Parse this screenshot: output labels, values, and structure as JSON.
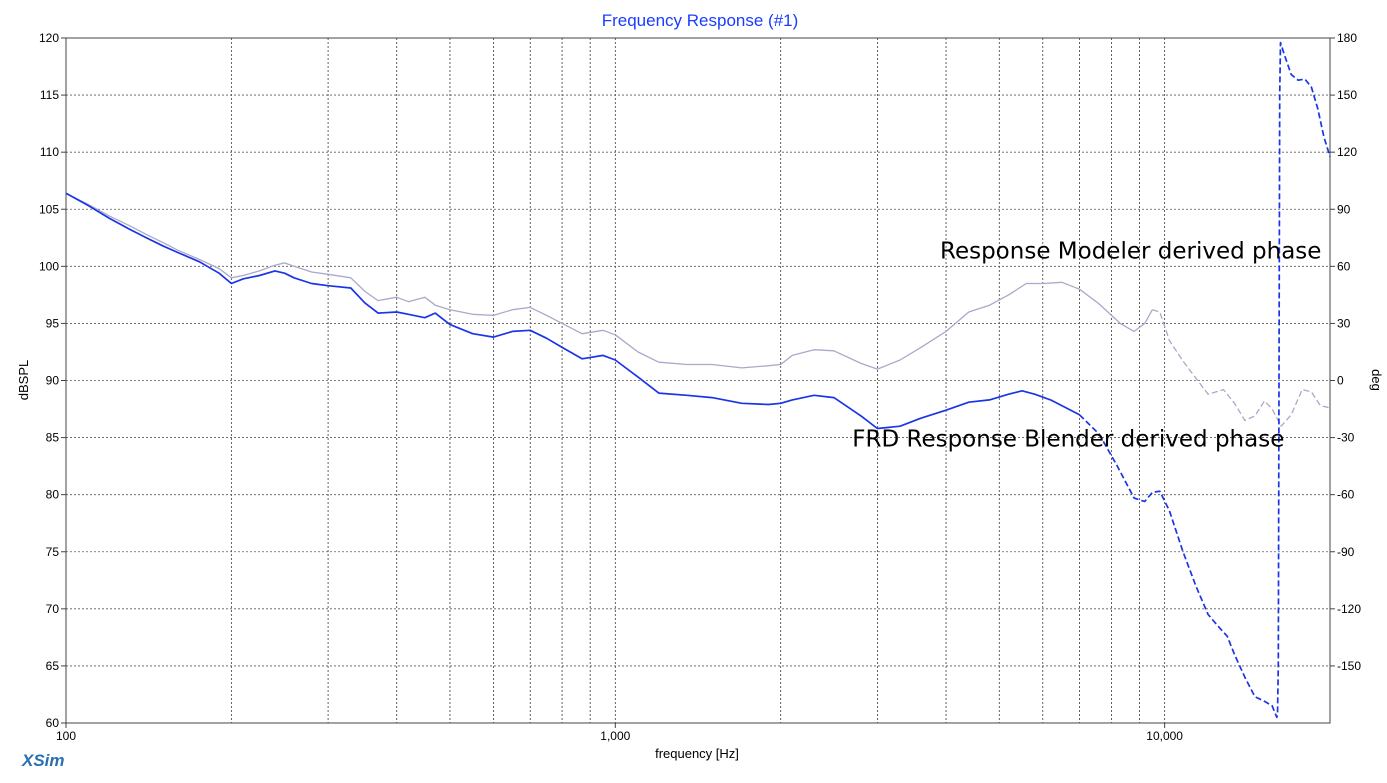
{
  "chart_data": {
    "type": "line",
    "title": "Frequency Response (#1)",
    "xlabel": "frequency [Hz]",
    "ylabel": "dBSPL",
    "y2label": "deg",
    "x_scale": "log",
    "xlim": [
      100,
      20000
    ],
    "ylim": [
      60,
      120
    ],
    "y2lim": [
      -180,
      180
    ],
    "grid": true,
    "x_tick_labels": [
      {
        "value": 100,
        "label": "100"
      },
      {
        "value": 1000,
        "label": "1,000"
      },
      {
        "value": 10000,
        "label": "10,000"
      }
    ],
    "y_ticks": [
      60,
      65,
      70,
      75,
      80,
      85,
      90,
      95,
      100,
      105,
      110,
      115,
      120
    ],
    "y2_ticks": [
      -150,
      -120,
      -90,
      -60,
      -30,
      0,
      30,
      60,
      90,
      120,
      150,
      180
    ],
    "annotations": [
      {
        "text": "Response Modeler derived phase",
        "x": 3900,
        "y": 100.7
      },
      {
        "text": "FRD Response Blender derived phase",
        "x": 2700,
        "y": 84.2
      }
    ],
    "series": [
      {
        "color": "#a9a9c9",
        "width": 1.3,
        "dashed_from": 9500,
        "points": [
          [
            100,
            106.4
          ],
          [
            110,
            105.4
          ],
          [
            120,
            104.4
          ],
          [
            130,
            103.6
          ],
          [
            140,
            102.8
          ],
          [
            150,
            102.1
          ],
          [
            160,
            101.4
          ],
          [
            175,
            100.6
          ],
          [
            190,
            99.8
          ],
          [
            200,
            99.0
          ],
          [
            210,
            99.2
          ],
          [
            225,
            99.6
          ],
          [
            240,
            100.1
          ],
          [
            250,
            100.3
          ],
          [
            260,
            100.0
          ],
          [
            280,
            99.5
          ],
          [
            300,
            99.3
          ],
          [
            330,
            99.0
          ],
          [
            350,
            97.8
          ],
          [
            370,
            97.0
          ],
          [
            400,
            97.3
          ],
          [
            420,
            96.9
          ],
          [
            450,
            97.3
          ],
          [
            470,
            96.6
          ],
          [
            500,
            96.2
          ],
          [
            550,
            95.8
          ],
          [
            600,
            95.7
          ],
          [
            650,
            96.2
          ],
          [
            700,
            96.4
          ],
          [
            750,
            95.7
          ],
          [
            800,
            95.0
          ],
          [
            870,
            94.1
          ],
          [
            950,
            94.4
          ],
          [
            1000,
            94.0
          ],
          [
            1100,
            92.5
          ],
          [
            1200,
            91.6
          ],
          [
            1350,
            91.4
          ],
          [
            1500,
            91.4
          ],
          [
            1700,
            91.1
          ],
          [
            1900,
            91.3
          ],
          [
            2000,
            91.4
          ],
          [
            2100,
            92.2
          ],
          [
            2300,
            92.7
          ],
          [
            2500,
            92.6
          ],
          [
            2800,
            91.5
          ],
          [
            3000,
            91.0
          ],
          [
            3300,
            91.8
          ],
          [
            3600,
            92.9
          ],
          [
            4000,
            94.3
          ],
          [
            4400,
            96.0
          ],
          [
            4800,
            96.6
          ],
          [
            5200,
            97.5
          ],
          [
            5600,
            98.5
          ],
          [
            6000,
            98.5
          ],
          [
            6500,
            98.6
          ],
          [
            7000,
            98.0
          ],
          [
            7600,
            96.7
          ],
          [
            8300,
            95.0
          ],
          [
            8800,
            94.3
          ],
          [
            9200,
            95.0
          ],
          [
            9500,
            96.2
          ],
          [
            9800,
            96.0
          ],
          [
            10200,
            93.5
          ],
          [
            10800,
            91.7
          ],
          [
            11400,
            90.2
          ],
          [
            12000,
            88.8
          ],
          [
            12800,
            89.2
          ],
          [
            13400,
            88.0
          ],
          [
            14000,
            86.5
          ],
          [
            14600,
            86.9
          ],
          [
            15200,
            88.2
          ],
          [
            15700,
            87.5
          ],
          [
            16300,
            86.0
          ],
          [
            17000,
            87.0
          ],
          [
            17800,
            89.2
          ],
          [
            18500,
            89.0
          ],
          [
            19200,
            87.8
          ],
          [
            20000,
            87.6
          ]
        ]
      },
      {
        "color": "#1a34e8",
        "width": 1.7,
        "dashed_from": 7000,
        "points": [
          [
            100,
            106.4
          ],
          [
            110,
            105.3
          ],
          [
            120,
            104.2
          ],
          [
            130,
            103.3
          ],
          [
            140,
            102.5
          ],
          [
            150,
            101.8
          ],
          [
            160,
            101.2
          ],
          [
            175,
            100.4
          ],
          [
            190,
            99.4
          ],
          [
            200,
            98.5
          ],
          [
            210,
            98.9
          ],
          [
            225,
            99.2
          ],
          [
            240,
            99.6
          ],
          [
            250,
            99.4
          ],
          [
            260,
            99.0
          ],
          [
            280,
            98.5
          ],
          [
            300,
            98.3
          ],
          [
            330,
            98.1
          ],
          [
            350,
            96.8
          ],
          [
            370,
            95.9
          ],
          [
            400,
            96.0
          ],
          [
            420,
            95.8
          ],
          [
            450,
            95.5
          ],
          [
            470,
            95.9
          ],
          [
            500,
            94.9
          ],
          [
            550,
            94.1
          ],
          [
            600,
            93.8
          ],
          [
            650,
            94.3
          ],
          [
            700,
            94.4
          ],
          [
            750,
            93.7
          ],
          [
            800,
            92.9
          ],
          [
            870,
            91.9
          ],
          [
            950,
            92.2
          ],
          [
            1000,
            91.8
          ],
          [
            1100,
            90.3
          ],
          [
            1200,
            88.9
          ],
          [
            1350,
            88.7
          ],
          [
            1500,
            88.5
          ],
          [
            1700,
            88.0
          ],
          [
            1900,
            87.9
          ],
          [
            2000,
            88.0
          ],
          [
            2100,
            88.3
          ],
          [
            2300,
            88.7
          ],
          [
            2500,
            88.5
          ],
          [
            2800,
            86.9
          ],
          [
            3000,
            85.8
          ],
          [
            3300,
            86.0
          ],
          [
            3600,
            86.7
          ],
          [
            4000,
            87.4
          ],
          [
            4400,
            88.1
          ],
          [
            4800,
            88.3
          ],
          [
            5200,
            88.8
          ],
          [
            5500,
            89.1
          ],
          [
            5800,
            88.8
          ],
          [
            6200,
            88.3
          ],
          [
            7000,
            87.0
          ],
          [
            7600,
            85.3
          ],
          [
            8200,
            82.5
          ],
          [
            8800,
            79.7
          ],
          [
            9200,
            79.4
          ],
          [
            9500,
            80.2
          ],
          [
            9800,
            80.3
          ],
          [
            10200,
            78.6
          ],
          [
            10800,
            75.0
          ],
          [
            11400,
            72.0
          ],
          [
            12000,
            69.5
          ],
          [
            12500,
            68.5
          ],
          [
            13000,
            67.6
          ],
          [
            13400,
            66.0
          ],
          [
            14000,
            64.0
          ],
          [
            14600,
            62.3
          ],
          [
            15200,
            61.9
          ],
          [
            15700,
            61.5
          ],
          [
            16000,
            60.5
          ],
          [
            16050,
            60.7
          ],
          [
            16100,
            65
          ],
          [
            16150,
            90
          ],
          [
            16200,
            115
          ],
          [
            16250,
            119.6
          ],
          [
            16500,
            118.6
          ],
          [
            17000,
            116.8
          ],
          [
            17500,
            116.3
          ],
          [
            18000,
            116.4
          ],
          [
            18500,
            115.7
          ],
          [
            19000,
            113.8
          ],
          [
            19500,
            111.3
          ],
          [
            20000,
            109.6
          ]
        ]
      }
    ]
  },
  "footer": {
    "brand": "XSim"
  }
}
